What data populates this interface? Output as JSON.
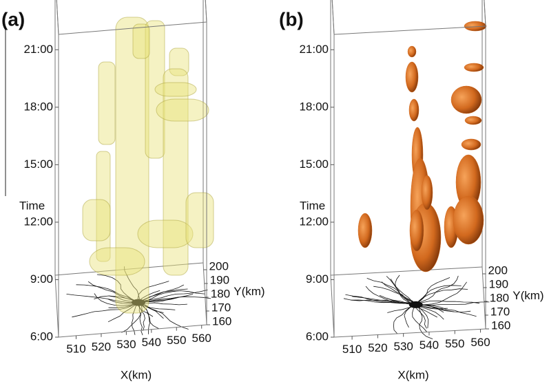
{
  "chart_data": [
    {
      "type": "3d-isosurface",
      "panel_label": "(a)",
      "x_label": "X(km)",
      "y_label": "Y(km)",
      "z_label": "Time",
      "color": "#e9e27a",
      "xlim": [
        503,
        562
      ],
      "xticks": [
        510,
        520,
        530,
        540,
        550,
        560
      ],
      "ylim": [
        160,
        205
      ],
      "yticks": [
        160,
        170,
        180,
        190,
        200
      ],
      "zlim": [
        6,
        21.8
      ],
      "zticks": [
        {
          "value": 6,
          "label": "6:00"
        },
        {
          "value": 9,
          "label": "9:00"
        },
        {
          "value": 12,
          "label": "12:00"
        },
        {
          "value": 15,
          "label": "15:00"
        },
        {
          "value": 18,
          "label": "18:00"
        },
        {
          "value": 21,
          "label": "21:00"
        }
      ]
    },
    {
      "type": "3d-isosurface",
      "panel_label": "(b)",
      "x_label": "X(km)",
      "y_label": "Y(km)",
      "z_label": "Time",
      "color": "#d2691e",
      "xlim": [
        503,
        562
      ],
      "xticks": [
        510,
        520,
        530,
        540,
        550,
        560
      ],
      "ylim": [
        160,
        205
      ],
      "yticks": [
        160,
        170,
        180,
        190,
        200
      ],
      "zlim": [
        6,
        21.8
      ],
      "zticks": [
        {
          "value": 6,
          "label": "6:00"
        },
        {
          "value": 9,
          "label": "9:00"
        },
        {
          "value": 12,
          "label": "12:00"
        },
        {
          "value": 15,
          "label": "15:00"
        },
        {
          "value": 18,
          "label": "18:00"
        },
        {
          "value": 21,
          "label": "21:00"
        }
      ]
    }
  ]
}
